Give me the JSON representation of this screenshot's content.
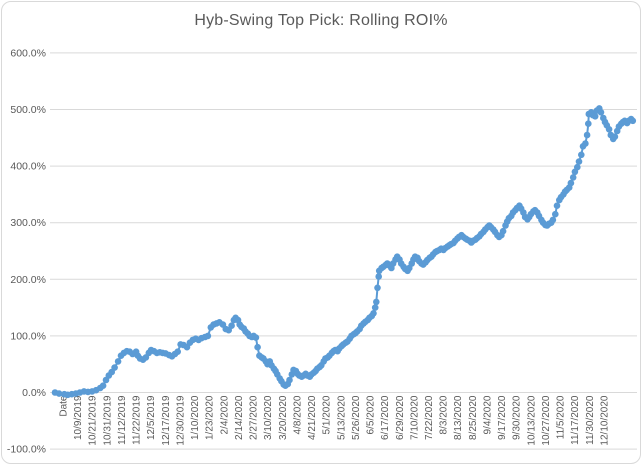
{
  "chart_data": {
    "type": "line",
    "title": "Hyb-Swing Top Pick: Rolling ROI%",
    "legend": "none",
    "grid": "horizontal",
    "colors": {
      "marker": "#5B9BD5",
      "line": "#5B9BD5",
      "gridline": "#D9D9D9",
      "text": "#595959",
      "frame_border": "#D9D9D9"
    },
    "y_axis": {
      "min": -100,
      "max": 600,
      "step": 100,
      "unit": "%",
      "tick_labels": [
        "600.0%",
        "500.0%",
        "400.0%",
        "300.0%",
        "200.0%",
        "100.0%",
        "0.0%",
        "-100.0%"
      ]
    },
    "x_axis": {
      "tick_labels": [
        "Date",
        "10/9/2019",
        "10/21/2019",
        "10/31/2019",
        "11/12/2019",
        "11/22/2019",
        "12/5/2019",
        "12/17/2019",
        "12/30/2019",
        "1/10/2020",
        "1/23/2020",
        "2/4/2020",
        "2/14/2020",
        "2/27/2020",
        "3/10/2020",
        "3/20/2020",
        "4/8/2020",
        "4/21/2020",
        "5/1/2020",
        "5/13/2020",
        "5/26/2020",
        "6/5/2020",
        "6/17/2020",
        "6/29/2020",
        "7/10/2020",
        "7/22/2020",
        "8/3/2020",
        "8/13/2020",
        "8/25/2020",
        "9/4/2020",
        "9/17/2020",
        "9/30/2020",
        "10/13/2020",
        "10/27/2020",
        "11/5/2020",
        "11/17/2020",
        "11/30/2020",
        "12/10/2020"
      ]
    },
    "series": [
      {
        "name": "Rolling ROI%",
        "x_is_fraction_of_axis": true,
        "points": [
          [
            0.0,
            0
          ],
          [
            0.007,
            -2
          ],
          [
            0.016,
            -3
          ],
          [
            0.022,
            -4
          ],
          [
            0.029,
            -3
          ],
          [
            0.036,
            -2
          ],
          [
            0.043,
            0
          ],
          [
            0.05,
            2
          ],
          [
            0.057,
            1
          ],
          [
            0.064,
            2
          ],
          [
            0.071,
            4
          ],
          [
            0.078,
            8
          ],
          [
            0.083,
            12
          ],
          [
            0.088,
            22
          ],
          [
            0.093,
            30
          ],
          [
            0.098,
            36
          ],
          [
            0.103,
            44
          ],
          [
            0.109,
            55
          ],
          [
            0.114,
            65
          ],
          [
            0.119,
            70
          ],
          [
            0.124,
            73
          ],
          [
            0.129,
            72
          ],
          [
            0.134,
            68
          ],
          [
            0.14,
            72
          ],
          [
            0.143,
            65
          ],
          [
            0.147,
            60
          ],
          [
            0.152,
            58
          ],
          [
            0.157,
            62
          ],
          [
            0.162,
            70
          ],
          [
            0.166,
            75
          ],
          [
            0.171,
            73
          ],
          [
            0.176,
            70
          ],
          [
            0.181,
            71
          ],
          [
            0.186,
            70
          ],
          [
            0.191,
            69
          ],
          [
            0.197,
            66
          ],
          [
            0.202,
            64
          ],
          [
            0.207,
            68
          ],
          [
            0.212,
            72
          ],
          [
            0.217,
            85
          ],
          [
            0.222,
            84
          ],
          [
            0.228,
            80
          ],
          [
            0.233,
            88
          ],
          [
            0.238,
            93
          ],
          [
            0.243,
            95
          ],
          [
            0.248,
            93
          ],
          [
            0.253,
            96
          ],
          [
            0.259,
            98
          ],
          [
            0.264,
            100
          ],
          [
            0.269,
            115
          ],
          [
            0.274,
            120
          ],
          [
            0.279,
            122
          ],
          [
            0.284,
            124
          ],
          [
            0.29,
            120
          ],
          [
            0.295,
            112
          ],
          [
            0.3,
            110
          ],
          [
            0.305,
            118
          ],
          [
            0.309,
            128
          ],
          [
            0.312,
            132
          ],
          [
            0.316,
            128
          ],
          [
            0.319,
            120
          ],
          [
            0.322,
            116
          ],
          [
            0.326,
            113
          ],
          [
            0.329,
            108
          ],
          [
            0.333,
            104
          ],
          [
            0.336,
            100
          ],
          [
            0.34,
            98
          ],
          [
            0.343,
            100
          ],
          [
            0.347,
            97
          ],
          [
            0.35,
            80
          ],
          [
            0.353,
            65
          ],
          [
            0.357,
            62
          ],
          [
            0.36,
            60
          ],
          [
            0.364,
            55
          ],
          [
            0.367,
            50
          ],
          [
            0.371,
            55
          ],
          [
            0.374,
            48
          ],
          [
            0.378,
            42
          ],
          [
            0.381,
            38
          ],
          [
            0.384,
            32
          ],
          [
            0.388,
            25
          ],
          [
            0.391,
            20
          ],
          [
            0.395,
            14
          ],
          [
            0.398,
            12
          ],
          [
            0.402,
            15
          ],
          [
            0.405,
            22
          ],
          [
            0.409,
            32
          ],
          [
            0.412,
            40
          ],
          [
            0.416,
            38
          ],
          [
            0.419,
            33
          ],
          [
            0.422,
            30
          ],
          [
            0.426,
            28
          ],
          [
            0.429,
            30
          ],
          [
            0.433,
            33
          ],
          [
            0.436,
            30
          ],
          [
            0.44,
            28
          ],
          [
            0.443,
            32
          ],
          [
            0.447,
            35
          ],
          [
            0.45,
            38
          ],
          [
            0.453,
            42
          ],
          [
            0.457,
            45
          ],
          [
            0.46,
            48
          ],
          [
            0.464,
            55
          ],
          [
            0.467,
            60
          ],
          [
            0.471,
            62
          ],
          [
            0.474,
            65
          ],
          [
            0.478,
            70
          ],
          [
            0.481,
            73
          ],
          [
            0.484,
            75
          ],
          [
            0.488,
            73
          ],
          [
            0.491,
            78
          ],
          [
            0.495,
            82
          ],
          [
            0.498,
            85
          ],
          [
            0.502,
            88
          ],
          [
            0.505,
            90
          ],
          [
            0.509,
            95
          ],
          [
            0.512,
            100
          ],
          [
            0.516,
            103
          ],
          [
            0.519,
            105
          ],
          [
            0.522,
            108
          ],
          [
            0.526,
            112
          ],
          [
            0.529,
            118
          ],
          [
            0.533,
            122
          ],
          [
            0.536,
            125
          ],
          [
            0.54,
            128
          ],
          [
            0.543,
            132
          ],
          [
            0.547,
            135
          ],
          [
            0.55,
            140
          ],
          [
            0.553,
            150
          ],
          [
            0.555,
            160
          ],
          [
            0.557,
            185
          ],
          [
            0.559,
            205
          ],
          [
            0.56,
            215
          ],
          [
            0.564,
            220
          ],
          [
            0.567,
            222
          ],
          [
            0.571,
            225
          ],
          [
            0.574,
            228
          ],
          [
            0.578,
            224
          ],
          [
            0.581,
            220
          ],
          [
            0.584,
            228
          ],
          [
            0.588,
            235
          ],
          [
            0.591,
            240
          ],
          [
            0.595,
            235
          ],
          [
            0.598,
            228
          ],
          [
            0.602,
            222
          ],
          [
            0.605,
            218
          ],
          [
            0.609,
            215
          ],
          [
            0.612,
            220
          ],
          [
            0.616,
            228
          ],
          [
            0.619,
            235
          ],
          [
            0.622,
            240
          ],
          [
            0.626,
            238
          ],
          [
            0.629,
            232
          ],
          [
            0.633,
            228
          ],
          [
            0.636,
            226
          ],
          [
            0.64,
            230
          ],
          [
            0.643,
            234
          ],
          [
            0.647,
            238
          ],
          [
            0.65,
            240
          ],
          [
            0.653,
            244
          ],
          [
            0.657,
            248
          ],
          [
            0.66,
            250
          ],
          [
            0.664,
            252
          ],
          [
            0.667,
            254
          ],
          [
            0.671,
            252
          ],
          [
            0.674,
            255
          ],
          [
            0.678,
            258
          ],
          [
            0.681,
            260
          ],
          [
            0.684,
            262
          ],
          [
            0.688,
            264
          ],
          [
            0.691,
            268
          ],
          [
            0.695,
            272
          ],
          [
            0.698,
            275
          ],
          [
            0.702,
            278
          ],
          [
            0.705,
            275
          ],
          [
            0.709,
            272
          ],
          [
            0.712,
            270
          ],
          [
            0.716,
            268
          ],
          [
            0.719,
            265
          ],
          [
            0.722,
            268
          ],
          [
            0.726,
            270
          ],
          [
            0.729,
            273
          ],
          [
            0.733,
            276
          ],
          [
            0.736,
            280
          ],
          [
            0.74,
            284
          ],
          [
            0.743,
            288
          ],
          [
            0.747,
            292
          ],
          [
            0.75,
            295
          ],
          [
            0.753,
            292
          ],
          [
            0.757,
            288
          ],
          [
            0.76,
            284
          ],
          [
            0.764,
            278
          ],
          [
            0.767,
            275
          ],
          [
            0.771,
            278
          ],
          [
            0.774,
            285
          ],
          [
            0.778,
            295
          ],
          [
            0.781,
            302
          ],
          [
            0.784,
            308
          ],
          [
            0.788,
            312
          ],
          [
            0.791,
            318
          ],
          [
            0.795,
            322
          ],
          [
            0.798,
            326
          ],
          [
            0.802,
            330
          ],
          [
            0.805,
            325
          ],
          [
            0.809,
            318
          ],
          [
            0.812,
            310
          ],
          [
            0.816,
            306
          ],
          [
            0.819,
            310
          ],
          [
            0.822,
            315
          ],
          [
            0.826,
            320
          ],
          [
            0.829,
            322
          ],
          [
            0.833,
            318
          ],
          [
            0.836,
            312
          ],
          [
            0.84,
            305
          ],
          [
            0.843,
            300
          ],
          [
            0.847,
            296
          ],
          [
            0.85,
            295
          ],
          [
            0.853,
            298
          ],
          [
            0.857,
            300
          ],
          [
            0.86,
            305
          ],
          [
            0.864,
            315
          ],
          [
            0.867,
            330
          ],
          [
            0.871,
            340
          ],
          [
            0.874,
            345
          ],
          [
            0.878,
            350
          ],
          [
            0.881,
            355
          ],
          [
            0.884,
            358
          ],
          [
            0.888,
            362
          ],
          [
            0.891,
            370
          ],
          [
            0.895,
            380
          ],
          [
            0.898,
            390
          ],
          [
            0.902,
            398
          ],
          [
            0.905,
            408
          ],
          [
            0.909,
            420
          ],
          [
            0.912,
            435
          ],
          [
            0.916,
            440
          ],
          [
            0.919,
            455
          ],
          [
            0.921,
            475
          ],
          [
            0.922,
            492
          ],
          [
            0.926,
            495
          ],
          [
            0.929,
            490
          ],
          [
            0.933,
            488
          ],
          [
            0.936,
            498
          ],
          [
            0.94,
            502
          ],
          [
            0.943,
            495
          ],
          [
            0.947,
            485
          ],
          [
            0.95,
            478
          ],
          [
            0.953,
            472
          ],
          [
            0.957,
            465
          ],
          [
            0.96,
            455
          ],
          [
            0.964,
            448
          ],
          [
            0.967,
            452
          ],
          [
            0.971,
            462
          ],
          [
            0.974,
            470
          ],
          [
            0.978,
            475
          ],
          [
            0.981,
            478
          ],
          [
            0.984,
            480
          ],
          [
            0.988,
            476
          ],
          [
            0.991,
            480
          ],
          [
            0.995,
            483
          ],
          [
            0.998,
            480
          ]
        ]
      }
    ]
  }
}
